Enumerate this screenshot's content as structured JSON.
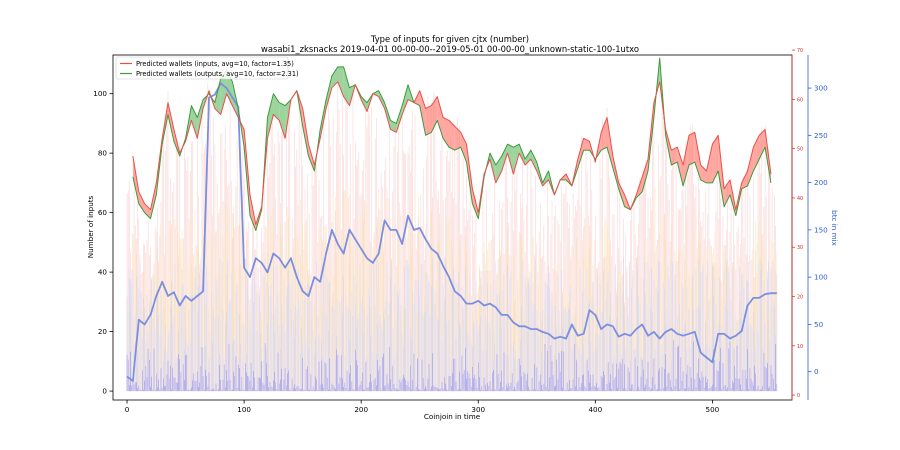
{
  "chart_data": {
    "type": "line",
    "title": "Type of inputs for given cjtx (number)",
    "subtitle": "wasabi1_zksnacks 2019-04-01 00-00-00--2019-05-01 00-00-00_unknown-static-100-1utxo",
    "xlabel": "Coinjoin in time",
    "ylabel": "Number of inputs",
    "y2label": "btc in mix",
    "xlim": [
      -12,
      568
    ],
    "ylim": [
      -3,
      113
    ],
    "y2lim": [
      -30,
      335
    ],
    "y3lim": [
      -1,
      69
    ],
    "xticks": [
      0,
      100,
      200,
      300,
      400,
      500
    ],
    "yticks": [
      0,
      20,
      40,
      60,
      80,
      100
    ],
    "y2ticks": [
      0,
      50,
      100,
      150,
      200,
      250,
      300
    ],
    "y3ticks": [
      0,
      10,
      20,
      30,
      40,
      50,
      60,
      70
    ],
    "legend_position": "top-left",
    "colors": {
      "inputs": "#e8504a",
      "outputs": "#3d9a3d",
      "fill_inputs_higher": "#ff8a80",
      "fill_outputs_higher": "#7cc47c",
      "btc_line": "#7b8fe0",
      "pink_bars": "#f6b0b0",
      "yellow_bars": "#f7dc9a",
      "lavender_bars": "#c9cdf7",
      "blue_bars": "#7575f0",
      "right_axis_red": "#d62728",
      "right_axis_blue": "#3060d0"
    },
    "series": [
      {
        "name": "Predicted wallets (inputs, avg=10, factor=1.35)",
        "x": [
          5,
          10,
          15,
          20,
          25,
          30,
          35,
          40,
          45,
          50,
          55,
          60,
          65,
          70,
          75,
          80,
          85,
          90,
          95,
          100,
          105,
          110,
          115,
          120,
          125,
          130,
          135,
          140,
          145,
          150,
          155,
          160,
          165,
          170,
          175,
          180,
          185,
          190,
          195,
          200,
          205,
          210,
          215,
          220,
          225,
          230,
          235,
          240,
          245,
          250,
          255,
          260,
          265,
          270,
          275,
          280,
          285,
          290,
          295,
          300,
          305,
          310,
          315,
          320,
          325,
          330,
          335,
          340,
          345,
          350,
          355,
          360,
          365,
          370,
          375,
          380,
          385,
          390,
          395,
          400,
          405,
          410,
          415,
          420,
          425,
          430,
          435,
          440,
          445,
          450,
          455,
          460,
          465,
          470,
          475,
          480,
          485,
          490,
          495,
          500,
          505,
          510,
          515,
          520,
          525,
          530,
          535,
          540,
          545,
          550
        ],
        "values": [
          79,
          67,
          63,
          61,
          70,
          85,
          97,
          88,
          80,
          84,
          91,
          85,
          95,
          101,
          95,
          93,
          100,
          96,
          92,
          88,
          66,
          56,
          62,
          85,
          93,
          91,
          85,
          98,
          101,
          95,
          83,
          76,
          85,
          95,
          102,
          104,
          99,
          96,
          103,
          98,
          94,
          100,
          99,
          95,
          88,
          87,
          93,
          98,
          97,
          101,
          95,
          96,
          99,
          92,
          91,
          89,
          87,
          83,
          68,
          60,
          73,
          78,
          70,
          74,
          80,
          73,
          80,
          76,
          78,
          74,
          69,
          71,
          66,
          71,
          73,
          69,
          78,
          85,
          84,
          77,
          87,
          92,
          79,
          70,
          66,
          61,
          66,
          72,
          78,
          97,
          104,
          88,
          81,
          82,
          76,
          86,
          87,
          76,
          74,
          83,
          86,
          68,
          71,
          61,
          70,
          74,
          82,
          86,
          88,
          73
        ]
      },
      {
        "name": "Predicted wallets (outputs, avg=10, factor=2.31)",
        "x": [
          5,
          10,
          15,
          20,
          25,
          30,
          35,
          40,
          45,
          50,
          55,
          60,
          65,
          70,
          75,
          80,
          85,
          90,
          95,
          100,
          105,
          110,
          115,
          120,
          125,
          130,
          135,
          140,
          145,
          150,
          155,
          160,
          165,
          170,
          175,
          180,
          185,
          190,
          195,
          200,
          205,
          210,
          215,
          220,
          225,
          230,
          235,
          240,
          245,
          250,
          255,
          260,
          265,
          270,
          275,
          280,
          285,
          290,
          295,
          300,
          305,
          310,
          315,
          320,
          325,
          330,
          335,
          340,
          345,
          350,
          355,
          360,
          365,
          370,
          375,
          380,
          385,
          390,
          395,
          400,
          405,
          410,
          415,
          420,
          425,
          430,
          435,
          440,
          445,
          450,
          455,
          460,
          465,
          470,
          475,
          480,
          485,
          490,
          495,
          500,
          505,
          510,
          515,
          520,
          525,
          530,
          535,
          540,
          545,
          550
        ],
        "values": [
          72,
          63,
          60,
          58,
          66,
          83,
          93,
          84,
          79,
          85,
          96,
          92,
          98,
          100,
          97,
          105,
          108,
          104,
          95,
          82,
          59,
          54,
          61,
          92,
          100,
          97,
          96,
          98,
          101,
          89,
          79,
          74,
          88,
          98,
          106,
          109,
          109,
          102,
          103,
          99,
          97,
          100,
          101,
          97,
          91,
          90,
          96,
          103,
          97,
          96,
          86,
          87,
          91,
          85,
          82,
          81,
          82,
          77,
          63,
          58,
          72,
          80,
          76,
          79,
          83,
          82,
          83,
          78,
          81,
          77,
          70,
          74,
          66,
          71,
          71,
          69,
          75,
          81,
          81,
          78,
          81,
          82,
          75,
          68,
          62,
          61,
          65,
          67,
          74,
          92,
          112,
          86,
          76,
          77,
          69,
          76,
          77,
          71,
          70,
          70,
          74,
          62,
          66,
          59,
          68,
          69,
          74,
          78,
          82,
          70
        ]
      },
      {
        "name": "btc in mix",
        "x": [
          0,
          5,
          10,
          15,
          20,
          25,
          30,
          35,
          40,
          45,
          50,
          55,
          60,
          65,
          70,
          75,
          80,
          85,
          90,
          95,
          100,
          105,
          110,
          115,
          120,
          125,
          130,
          135,
          140,
          145,
          150,
          155,
          160,
          165,
          170,
          175,
          180,
          185,
          190,
          195,
          200,
          205,
          210,
          215,
          220,
          225,
          230,
          235,
          240,
          245,
          250,
          255,
          260,
          265,
          270,
          275,
          280,
          285,
          290,
          295,
          300,
          305,
          310,
          315,
          320,
          325,
          330,
          335,
          340,
          345,
          350,
          355,
          360,
          365,
          370,
          375,
          380,
          385,
          390,
          395,
          400,
          405,
          410,
          415,
          420,
          425,
          430,
          435,
          440,
          445,
          450,
          455,
          460,
          465,
          470,
          475,
          480,
          485,
          490,
          495,
          500,
          505,
          510,
          515,
          520,
          525,
          530,
          535,
          540,
          545,
          550,
          555
        ],
        "values": [
          -5,
          -10,
          55,
          50,
          60,
          80,
          95,
          80,
          84,
          70,
          80,
          75,
          80,
          85,
          290,
          293,
          305,
          300,
          290,
          280,
          110,
          100,
          120,
          115,
          105,
          125,
          120,
          110,
          120,
          100,
          85,
          80,
          100,
          95,
          125,
          150,
          135,
          125,
          150,
          140,
          130,
          120,
          115,
          125,
          160,
          150,
          150,
          135,
          165,
          150,
          152,
          140,
          130,
          125,
          112,
          100,
          85,
          80,
          72,
          72,
          75,
          70,
          72,
          68,
          60,
          60,
          52,
          48,
          48,
          45,
          45,
          42,
          40,
          35,
          37,
          35,
          50,
          38,
          40,
          65,
          60,
          45,
          50,
          48,
          37,
          40,
          38,
          45,
          50,
          38,
          42,
          35,
          42,
          45,
          40,
          38,
          40,
          42,
          20,
          15,
          10,
          40,
          40,
          35,
          38,
          43,
          70,
          78,
          78,
          82,
          83,
          83
        ]
      }
    ]
  }
}
